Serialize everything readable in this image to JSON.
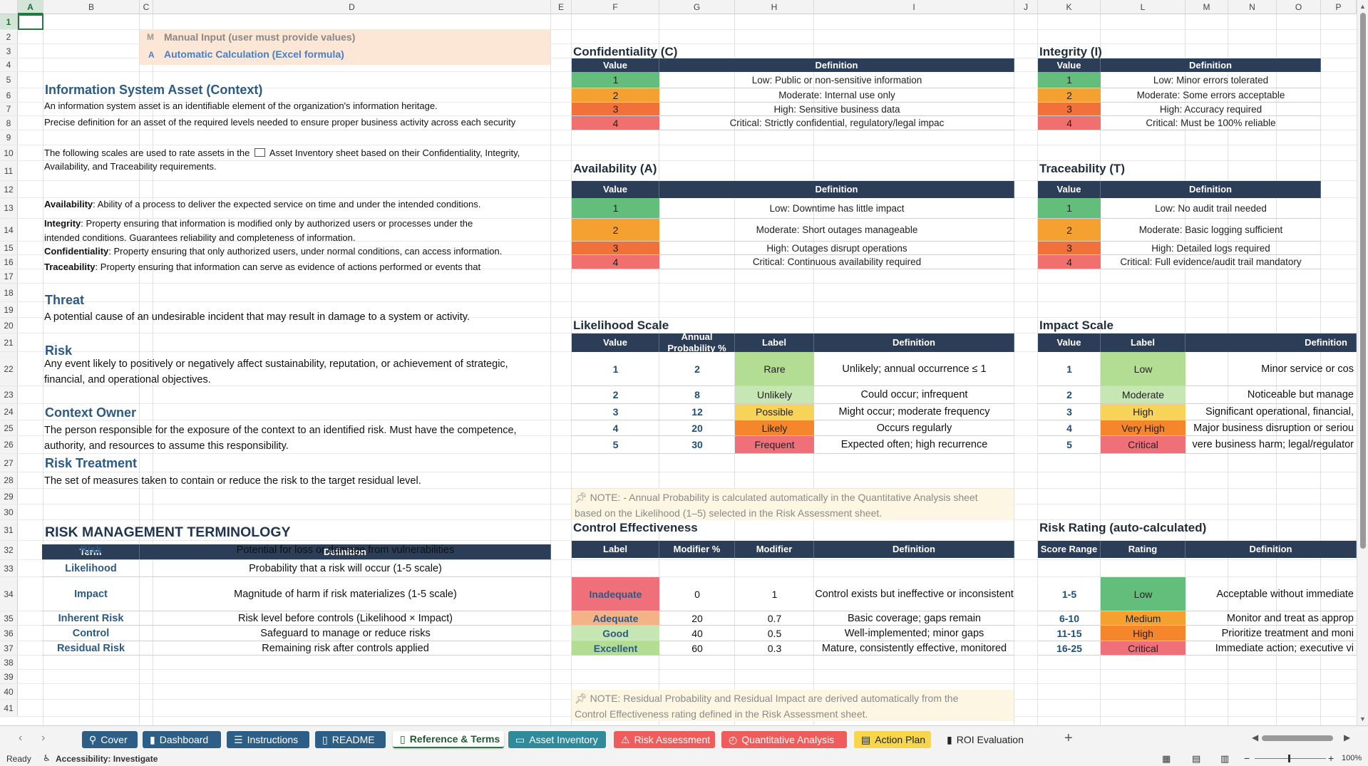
{
  "columns": [
    "A",
    "B",
    "C",
    "D",
    "E",
    "F",
    "G",
    "H",
    "I",
    "J",
    "K",
    "L",
    "M",
    "N",
    "O",
    "P"
  ],
  "legend": {
    "manual_code": "M",
    "manual_label": "Manual Input (user must provide values)",
    "auto_code": "A",
    "auto_label": "Automatic Calculation (Excel formula)"
  },
  "left": {
    "asset_title": "Information System Asset (Context)",
    "asset_line1": "An information system asset is an identifiable element of the organization's information heritage.",
    "asset_line2": "Precise definition for an asset of the required levels needed to ensure proper business activity across each security",
    "scales_line1": "The following scales are used to rate assets in the",
    "scales_sheet": "Asset Inventory sheet based on their Confidentiality, Integrity,",
    "scales_line2": "Availability, and Traceability requirements.",
    "avail_term": "Availability",
    "avail_def": ": Ability of a process to deliver the expected service on time and under the intended conditions.",
    "integ_term": "Integrity",
    "integ_def": ": Property ensuring that information is modified only by authorized users or processes under the",
    "integ_def2": "intended conditions. Guarantees reliability and completeness of information.",
    "conf_term": "Confidentiality",
    "conf_def": ": Property ensuring that only authorized users, under normal conditions, can access information.",
    "trace_term": "Traceability",
    "trace_def": ": Property ensuring that information can serve as evidence of actions performed or events that",
    "threat_title": "Threat",
    "threat_def": "A potential cause of an undesirable incident that may result in damage to a system or activity.",
    "risk_title": "Risk",
    "risk_def1": "Any event likely to positively or negatively affect sustainability, reputation, or achievement of strategic,",
    "risk_def2": "financial, and operational objectives.",
    "owner_title": "Context Owner",
    "owner_def1": "The person responsible for the exposure of the context to an identified risk. Must have the competence,",
    "owner_def2": "authority, and resources to assume this responsibility.",
    "treat_title": "Risk Treatment",
    "treat_def": "The set of measures taken to contain or reduce the risk to the target residual level.",
    "term_title": "RISK MANAGEMENT TERMINOLOGY",
    "term_head": [
      "Term",
      "Definition"
    ],
    "terms": [
      {
        "term": "Risk",
        "def": "Potential for loss or damage from vulnerabilities"
      },
      {
        "term": "Likelihood",
        "def": "Probability that a risk will occur (1-5 scale)"
      },
      {
        "term": "Impact",
        "def": "Magnitude of harm if risk materializes (1-5 scale)"
      },
      {
        "term": "Inherent Risk",
        "def": "Risk level before controls (Likelihood × Impact)"
      },
      {
        "term": "Control",
        "def": "Safeguard to manage or reduce risks"
      },
      {
        "term": "Residual Risk",
        "def": "Remaining risk after controls applied"
      }
    ]
  },
  "conf": {
    "title": "Confidentiality (C)",
    "head": [
      "Value",
      "Definition"
    ],
    "rows": [
      {
        "v": "1",
        "d": "Low: Public or non-sensitive information"
      },
      {
        "v": "2",
        "d": "Moderate: Internal use only"
      },
      {
        "v": "3",
        "d": "High: Sensitive business data"
      },
      {
        "v": "4",
        "d": "Critical: Strictly confidential, regulatory/legal impac"
      }
    ]
  },
  "integ": {
    "title": "Integrity (I)",
    "head": [
      "Value",
      "Definition"
    ],
    "rows": [
      {
        "v": "1",
        "d": "Low: Minor errors tolerated"
      },
      {
        "v": "2",
        "d": "Moderate: Some errors acceptable"
      },
      {
        "v": "3",
        "d": "High: Accuracy required"
      },
      {
        "v": "4",
        "d": "Critical: Must be 100% reliable"
      }
    ]
  },
  "avail": {
    "title": "Availability (A)",
    "head": [
      "Value",
      "Definition"
    ],
    "rows": [
      {
        "v": "1",
        "d": "Low: Downtime has little impact"
      },
      {
        "v": "2",
        "d": "Moderate: Short outages manageable"
      },
      {
        "v": "3",
        "d": "High: Outages disrupt operations"
      },
      {
        "v": "4",
        "d": "Critical: Continuous availability required"
      }
    ]
  },
  "trace": {
    "title": "Traceability (T)",
    "head": [
      "Value",
      "Definition"
    ],
    "rows": [
      {
        "v": "1",
        "d": "Low: No audit trail needed"
      },
      {
        "v": "2",
        "d": "Moderate: Basic logging sufficient"
      },
      {
        "v": "3",
        "d": "High: Detailed logs required"
      },
      {
        "v": "4",
        "d": "Critical: Full evidence/audit trail mandatory"
      }
    ]
  },
  "likelihood": {
    "title": "Likelihood Scale",
    "head": [
      "Value",
      "Annual Probability %",
      "Label",
      "Definition"
    ],
    "rows": [
      {
        "v": "1",
        "p": "2",
        "l": "Rare",
        "d": "Unlikely; annual occurrence ≤ 1"
      },
      {
        "v": "2",
        "p": "8",
        "l": "Unlikely",
        "d": "Could occur; infrequent"
      },
      {
        "v": "3",
        "p": "12",
        "l": "Possible",
        "d": "Might occur; moderate frequency"
      },
      {
        "v": "4",
        "p": "20",
        "l": "Likely",
        "d": "Occurs regularly"
      },
      {
        "v": "5",
        "p": "30",
        "l": "Frequent",
        "d": "Expected often; high recurrence"
      }
    ],
    "note1": "NOTE: - Annual Probability is calculated automatically in the Quantitative Analysis sheet",
    "note2": "based on the Likelihood (1–5) selected in the Risk Assessment sheet."
  },
  "impact": {
    "title": "Impact Scale",
    "head": [
      "Value",
      "Label",
      "Definition"
    ],
    "rows": [
      {
        "v": "1",
        "l": "Low",
        "d": "Minor service or cos"
      },
      {
        "v": "2",
        "l": "Moderate",
        "d": "Noticeable but manage"
      },
      {
        "v": "3",
        "l": "High",
        "d": "Significant operational, financial,"
      },
      {
        "v": "4",
        "l": "Very High",
        "d": "Major business disruption or seriou"
      },
      {
        "v": "5",
        "l": "Critical",
        "d": "vere business harm; legal/regulator"
      }
    ]
  },
  "control": {
    "title": "Control Effectiveness",
    "head": [
      "Label",
      "Modifier %",
      "Modifier",
      "Definition"
    ],
    "rows": [
      {
        "l": "Inadequate",
        "p": "0",
        "m": "1",
        "d": "Control exists but ineffective or inconsistent"
      },
      {
        "l": "Adequate",
        "p": "20",
        "m": "0.7",
        "d": "Basic coverage; gaps remain"
      },
      {
        "l": "Good",
        "p": "40",
        "m": "0.5",
        "d": "Well-implemented; minor gaps"
      },
      {
        "l": "Excellent",
        "p": "60",
        "m": "0.3",
        "d": "Mature, consistently effective, monitored"
      }
    ],
    "note1": "NOTE: Residual Probability and Residual Impact are derived automatically from the",
    "note2": "Control Effectiveness rating defined in the Risk Assessment sheet."
  },
  "rating": {
    "title": "Risk Rating (auto-calculated)",
    "head": [
      "Score Range",
      "Rating",
      "Definition"
    ],
    "rows": [
      {
        "r": "1-5",
        "l": "Low",
        "d": "Acceptable without immediate"
      },
      {
        "r": "6-10",
        "l": "Medium",
        "d": "Monitor and treat as approp"
      },
      {
        "r": "11-15",
        "l": "High",
        "d": "Prioritize treatment and moni"
      },
      {
        "r": "16-25",
        "l": "Critical",
        "d": "Immediate action; executive vi"
      }
    ]
  },
  "colors": {
    "green": "#63be7b",
    "orange": "#f4a132",
    "red_orange": "#f2713a",
    "red": "#f07070",
    "lt_green": "#b4dd94",
    "pale_green": "#c6e6b4",
    "yellow": "#f8d35a",
    "orange2": "#f6862c",
    "red2": "#f0707a",
    "salmon": "#f4b287",
    "header": "#2c3e57"
  },
  "tabs": [
    {
      "label": "Cover",
      "icon": "person-icon",
      "bg": "#2d5f86",
      "fg": "#ffffff"
    },
    {
      "label": "Dashboard",
      "icon": "chart-icon",
      "bg": "#2d5f86",
      "fg": "#ffffff"
    },
    {
      "label": "Instructions",
      "icon": "list-icon",
      "bg": "#2d5f86",
      "fg": "#ffffff"
    },
    {
      "label": "README",
      "icon": "book-icon",
      "bg": "#2d5f86",
      "fg": "#ffffff"
    },
    {
      "label": "Reference & Terms",
      "icon": "book-icon",
      "bg": "#ffffff",
      "fg": "#1e5a2f"
    },
    {
      "label": "Asset Inventory",
      "icon": "box-icon",
      "bg": "#2f8a9a",
      "fg": "#ffffff"
    },
    {
      "label": "Risk Assessment",
      "icon": "warning-icon",
      "bg": "#f05c5c",
      "fg": "#ffffff"
    },
    {
      "label": "Quantitative Analysis",
      "icon": "clock-icon",
      "bg": "#f05c5c",
      "fg": "#ffffff"
    },
    {
      "label": "Action Plan",
      "icon": "clipboard-icon",
      "bg": "#f8d64a",
      "fg": "#222222"
    },
    {
      "label": "ROI Evaluation",
      "icon": "chart-icon",
      "bg": "#f3f3f3",
      "fg": "#222222"
    }
  ],
  "status": {
    "ready": "Ready",
    "accessibility": "Accessibility: Investigate",
    "zoom": "100%"
  }
}
